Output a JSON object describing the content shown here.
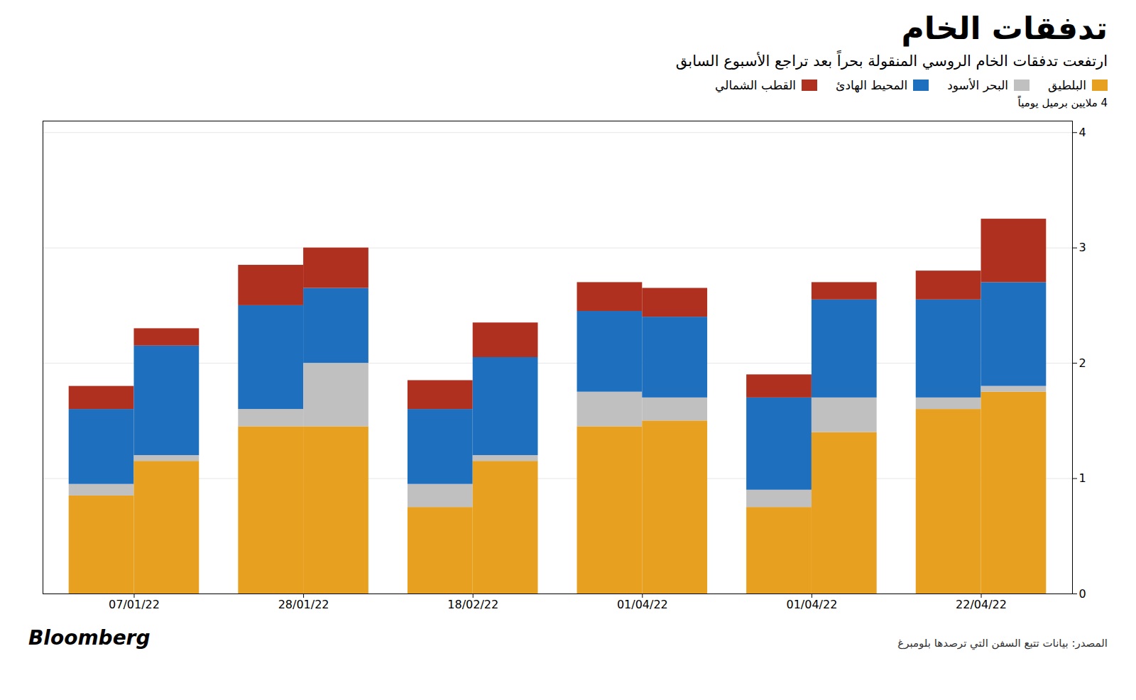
{
  "chart_data": {
    "type": "bar",
    "stacked": true,
    "title": "تدفقات الخام",
    "subtitle": "ارتفعت تدفقات الخام الروسي المنقولة بحراً بعد تراجع الأسبوع السابق",
    "ylabel": "4 ملايين برميل يومياً",
    "annotations": [
      "Bloomberg",
      "المصدر: بيانات تتبع السفن التي ترصدها بلومبرغ"
    ],
    "categories": [
      "07/01/22",
      null,
      "28/01/22",
      null,
      "18/02/22",
      null,
      "01/04/22",
      null,
      "01/04/22",
      null,
      "22/04/22",
      null
    ],
    "series": [
      {
        "name": "البلطيق",
        "color": "#E8A020",
        "values": [
          0.85,
          1.15,
          1.45,
          1.45,
          0.75,
          1.15,
          1.45,
          1.5,
          0.75,
          1.4,
          1.6,
          1.75
        ]
      },
      {
        "name": "البحر الأسود",
        "color": "#C0C0C0",
        "values": [
          0.1,
          0.05,
          0.15,
          0.55,
          0.2,
          0.05,
          0.3,
          0.2,
          0.15,
          0.3,
          0.1,
          0.05
        ]
      },
      {
        "name": "المحيط الهادئ",
        "color": "#1F6FBF",
        "values": [
          0.65,
          0.95,
          0.9,
          0.65,
          0.65,
          0.85,
          0.7,
          0.7,
          0.8,
          0.85,
          0.85,
          0.9
        ]
      },
      {
        "name": "القطب الشمالي",
        "color": "#B03020",
        "values": [
          0.2,
          0.15,
          0.35,
          0.35,
          0.25,
          0.3,
          0.25,
          0.25,
          0.2,
          0.15,
          0.25,
          0.55
        ]
      }
    ],
    "ylim": [
      0,
      4.1
    ],
    "yticks": [
      0,
      1,
      2,
      3,
      4
    ],
    "grid": true,
    "legend": "upper right"
  }
}
